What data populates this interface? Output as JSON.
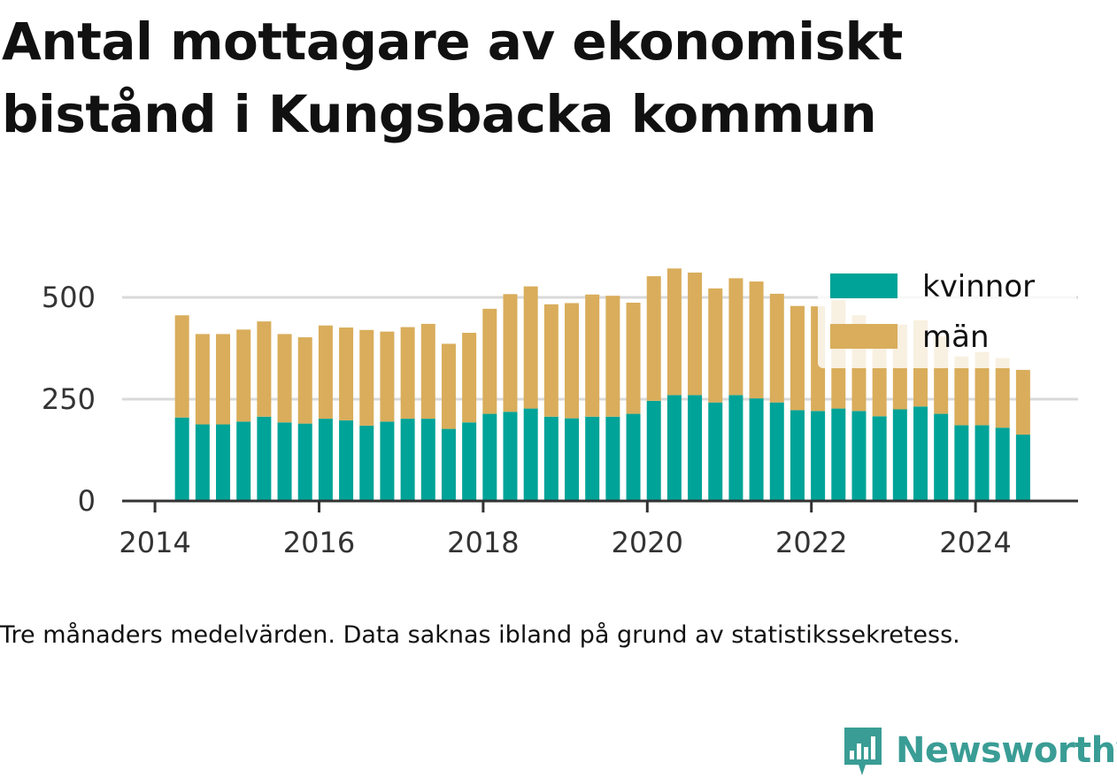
{
  "title": "Antal mottagare av ekonomiskt bistånd i Kungsbacka kommun",
  "caption": "Tre månaders medelvärden. Data saknas ibland på grund av statistikssekretess.",
  "brand": {
    "name": "Newsworthy",
    "icon": "newsworthy-logo-icon",
    "color": "#3a9d95"
  },
  "colors": {
    "kvinnor": "#00a398",
    "man": "#d9ad5b",
    "grid": "#d9d9d9",
    "axis": "#333333"
  },
  "chart_data": {
    "type": "bar",
    "stacked": true,
    "title": "Antal mottagare av ekonomiskt bistånd i Kungsbacka kommun",
    "xlabel": "",
    "ylabel": "",
    "xlim": [
      2013.6,
      2025.25
    ],
    "ylim": [
      0,
      600
    ],
    "grid": true,
    "legend_position": "top-right",
    "x_ticks": [
      2014,
      2016,
      2018,
      2020,
      2022,
      2024
    ],
    "y_ticks": [
      0,
      250,
      500
    ],
    "x": [
      2014.33,
      2014.58,
      2014.83,
      2015.08,
      2015.33,
      2015.58,
      2015.83,
      2016.08,
      2016.33,
      2016.58,
      2016.83,
      2017.08,
      2017.33,
      2017.58,
      2017.83,
      2018.08,
      2018.33,
      2018.58,
      2018.83,
      2019.08,
      2019.33,
      2019.58,
      2019.83,
      2020.08,
      2020.33,
      2020.58,
      2020.83,
      2021.08,
      2021.33,
      2021.58,
      2021.83,
      2022.08,
      2022.33,
      2022.58,
      2022.83,
      2023.08,
      2023.33,
      2023.58,
      2023.83,
      2024.08,
      2024.33,
      2024.58
    ],
    "series": [
      {
        "name": "kvinnor",
        "values": [
          205,
          188,
          188,
          195,
          207,
          193,
          190,
          202,
          198,
          185,
          195,
          202,
          202,
          177,
          193,
          214,
          219,
          227,
          207,
          203,
          207,
          207,
          214,
          246,
          260,
          260,
          242,
          260,
          252,
          242,
          223,
          221,
          227,
          221,
          208,
          225,
          232,
          214,
          186,
          186,
          180,
          163
        ]
      },
      {
        "name": "män",
        "values": [
          251,
          222,
          222,
          226,
          234,
          217,
          212,
          229,
          228,
          235,
          221,
          225,
          233,
          209,
          220,
          258,
          289,
          300,
          276,
          283,
          300,
          297,
          273,
          306,
          311,
          301,
          280,
          287,
          287,
          267,
          256,
          257,
          266,
          235,
          223,
          208,
          212,
          190,
          169,
          180,
          171,
          159
        ]
      }
    ]
  }
}
